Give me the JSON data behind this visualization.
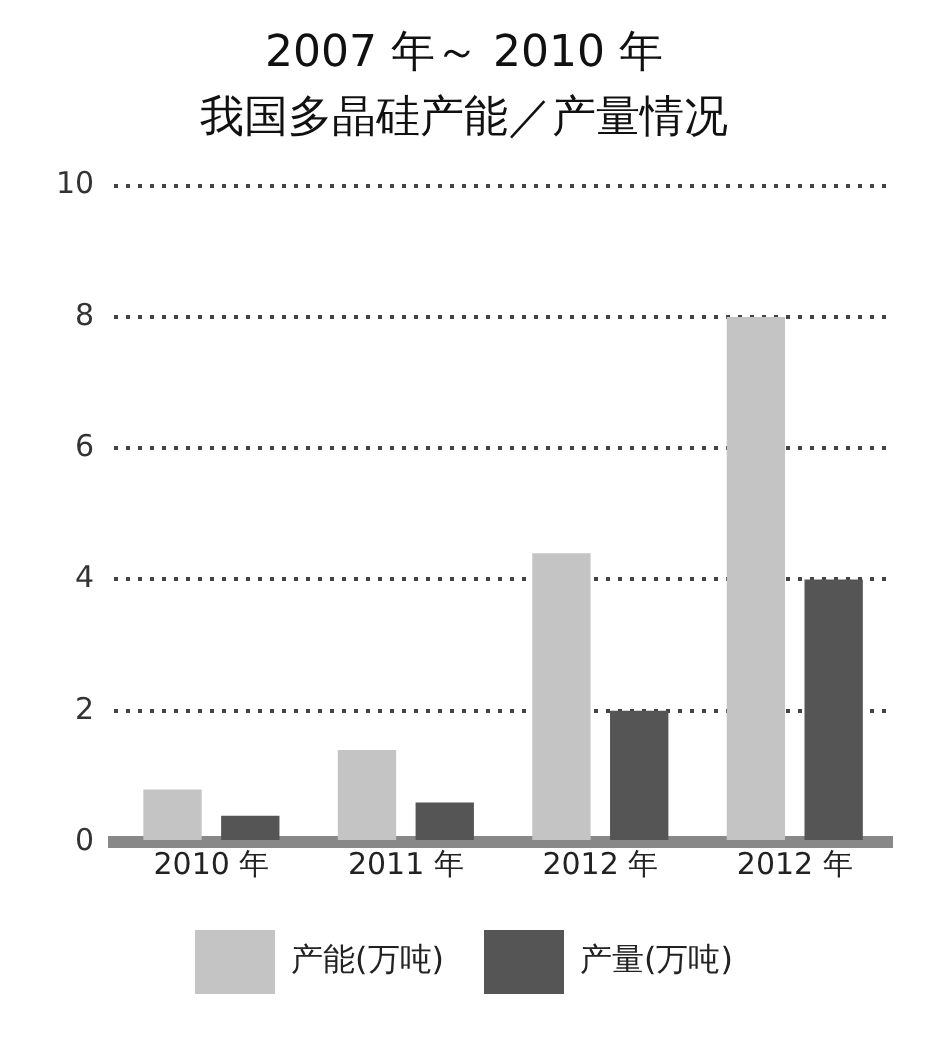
{
  "chart_data": {
    "type": "bar",
    "title": "2007 年～ 2010 年",
    "subtitle": "我国多晶硅产能／产量情况",
    "categories": [
      "2010 年",
      "2011 年",
      "2012 年",
      "2012 年"
    ],
    "series": [
      {
        "name": "产能(万吨)",
        "color": "#c4c4c4",
        "values": [
          0.8,
          1.4,
          4.4,
          8
        ]
      },
      {
        "name": "产量(万吨)",
        "color": "#555555",
        "values": [
          0.4,
          0.6,
          2,
          4
        ]
      }
    ],
    "ylim": [
      0,
      10
    ],
    "yticks": [
      0,
      2,
      4,
      6,
      8,
      10
    ],
    "grid": "y",
    "legend": "bottom"
  }
}
